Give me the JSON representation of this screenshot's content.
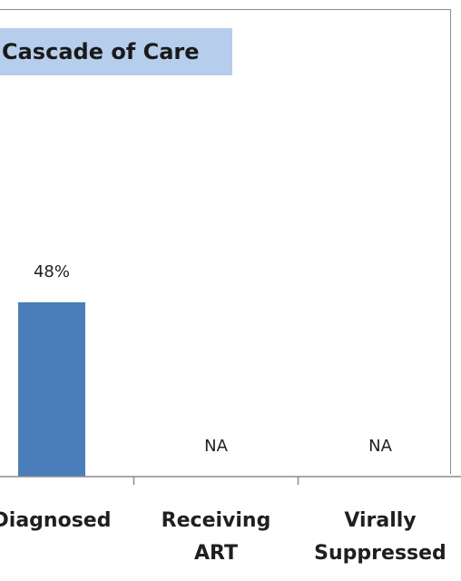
{
  "chart_data": {
    "type": "bar",
    "title": "Cascade of Care",
    "categories": [
      "Diagnosed",
      "Receiving ART",
      "Virally Suppressed"
    ],
    "category_lines": [
      [
        "Diagnosed"
      ],
      [
        "Receiving",
        "ART"
      ],
      [
        "Virally",
        "Suppressed"
      ]
    ],
    "values": [
      48,
      null,
      null
    ],
    "data_labels": [
      "48%",
      "NA",
      "NA"
    ],
    "ylim": [
      0,
      100
    ],
    "bar_color": "#4a7ebb",
    "grid": false
  }
}
